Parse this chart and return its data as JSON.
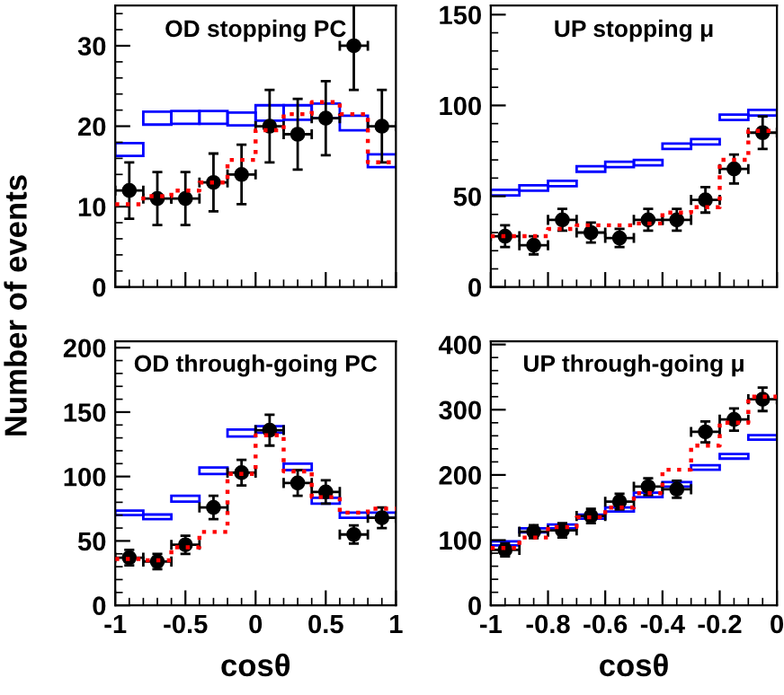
{
  "chart_data": [
    {
      "type": "scatter",
      "title": "OD stopping PC",
      "ylabel": "Number of events",
      "xlim": [
        -1,
        1
      ],
      "ylim": [
        0,
        35
      ],
      "xticks": [
        -1,
        -0.5,
        0,
        0.5,
        1
      ],
      "yticks": [
        0,
        10,
        20,
        30
      ],
      "tick_labels": "y",
      "grid": false,
      "legend": false,
      "series": [
        {
          "type": "bar",
          "color": "#0000ff",
          "x": [
            -0.9,
            -0.7,
            -0.5,
            -0.3,
            -0.1,
            0.1,
            0.3,
            0.5,
            0.7,
            0.9
          ],
          "base": [
            16.3,
            20.2,
            20.3,
            20.3,
            20.1,
            20.7,
            20.8,
            21,
            19.5,
            14.9
          ],
          "values": [
            1.6,
            1.6,
            1.6,
            1.6,
            1.6,
            1.9,
            1.8,
            1.8,
            1.8,
            1.6
          ]
        },
        {
          "type": "step",
          "color": "#ff0000",
          "line_style": "dotted",
          "x": [
            -1,
            -0.8,
            -0.6,
            -0.4,
            -0.2,
            0,
            0.2,
            0.4,
            0.6,
            0.8,
            1
          ],
          "values": [
            10.3,
            11.3,
            12,
            13,
            15.8,
            19.5,
            21.5,
            23,
            21.5,
            15.5,
            15.5
          ]
        },
        {
          "marker": "circle",
          "color": "#000000",
          "x": [
            -0.9,
            -0.7,
            -0.5,
            -0.3,
            -0.1,
            0.1,
            0.3,
            0.5,
            0.7,
            0.9
          ],
          "values": [
            12,
            11,
            11,
            13,
            14,
            20,
            19,
            21,
            30,
            20
          ],
          "errors": [
            3.5,
            3.3,
            3.3,
            3.6,
            3.7,
            4.5,
            4.4,
            4.6,
            5.5,
            4.5
          ],
          "xerrors": [
            0.1,
            0.1,
            0.1,
            0.1,
            0.1,
            0.1,
            0.1,
            0.1,
            0.1,
            0.1
          ]
        }
      ]
    },
    {
      "type": "scatter",
      "title": "UP stopping μ",
      "xlim": [
        -1,
        0
      ],
      "ylim": [
        0,
        155
      ],
      "xticks": [
        -1,
        -0.8,
        -0.6,
        -0.4,
        -0.2,
        0
      ],
      "yticks": [
        0,
        50,
        100,
        150
      ],
      "tick_labels": "y",
      "grid": false,
      "legend": false,
      "series": [
        {
          "type": "bar",
          "color": "#0000ff",
          "x": [
            -0.95,
            -0.85,
            -0.75,
            -0.65,
            -0.55,
            -0.45,
            -0.35,
            -0.25,
            -0.15,
            -0.05
          ],
          "base": [
            50.5,
            53,
            55.5,
            63.5,
            66,
            67,
            76,
            78.5,
            92,
            94.5
          ],
          "values": [
            3,
            3,
            3,
            3,
            3,
            3,
            3,
            3,
            3,
            3
          ]
        },
        {
          "type": "step",
          "color": "#ff0000",
          "line_style": "dotted",
          "x": [
            -1,
            -0.9,
            -0.8,
            -0.7,
            -0.6,
            -0.5,
            -0.4,
            -0.3,
            -0.2,
            -0.1,
            0
          ],
          "values": [
            28,
            28,
            32,
            34,
            34,
            35,
            41,
            44,
            70,
            86,
            86
          ]
        },
        {
          "marker": "circle",
          "color": "#000000",
          "x": [
            -0.95,
            -0.85,
            -0.75,
            -0.65,
            -0.55,
            -0.45,
            -0.35,
            -0.25,
            -0.15,
            -0.05
          ],
          "values": [
            28,
            23,
            37,
            30,
            27,
            37,
            37,
            48,
            65,
            85
          ],
          "errors": [
            6,
            5,
            6,
            5.5,
            5,
            6,
            6,
            7,
            8,
            9
          ],
          "xerrors": [
            0.05,
            0.05,
            0.05,
            0.05,
            0.05,
            0.05,
            0.05,
            0.05,
            0.05,
            0.05
          ]
        }
      ]
    },
    {
      "type": "scatter",
      "title": "OD through-going PC",
      "xlabel": "cosθ",
      "xlim": [
        -1,
        1
      ],
      "ylim": [
        0,
        205
      ],
      "xticks": [
        -1,
        -0.5,
        0,
        0.5,
        1
      ],
      "yticks": [
        0,
        50,
        100,
        150,
        200
      ],
      "grid": false,
      "legend": false,
      "series": [
        {
          "type": "bar",
          "color": "#0000ff",
          "x": [
            -0.9,
            -0.7,
            -0.5,
            -0.3,
            -0.1,
            0.1,
            0.3,
            0.5,
            0.7,
            0.9
          ],
          "base": [
            70,
            67,
            80.5,
            102,
            131,
            134,
            105,
            79,
            68,
            68
          ],
          "values": [
            3.5,
            3.5,
            4.5,
            5,
            5.5,
            5,
            5,
            4.5,
            4,
            4
          ]
        },
        {
          "type": "step",
          "color": "#ff0000",
          "line_style": "dotted",
          "x": [
            -1,
            -0.8,
            -0.6,
            -0.4,
            -0.2,
            0,
            0.2,
            0.4,
            0.6,
            0.8,
            1
          ],
          "values": [
            36,
            35,
            45,
            57,
            102,
            132,
            104,
            84,
            72,
            75,
            75
          ]
        },
        {
          "marker": "circle",
          "color": "#000000",
          "x": [
            -0.9,
            -0.7,
            -0.5,
            -0.3,
            -0.1,
            0.1,
            0.3,
            0.5,
            0.7,
            0.9
          ],
          "values": [
            37,
            34,
            47,
            76,
            103,
            136,
            95,
            88,
            55,
            68
          ],
          "errors": [
            6,
            6,
            7,
            9,
            10,
            12,
            10,
            9,
            7,
            8
          ],
          "xerrors": [
            0.1,
            0.1,
            0.1,
            0.1,
            0.1,
            0.1,
            0.1,
            0.1,
            0.1,
            0.1
          ]
        }
      ]
    },
    {
      "type": "scatter",
      "title": "UP through-going μ",
      "xlabel": "cosθ",
      "xlim": [
        -1,
        0
      ],
      "ylim": [
        0,
        405
      ],
      "xticks": [
        -1,
        -0.8,
        -0.6,
        -0.4,
        -0.2,
        0
      ],
      "yticks": [
        0,
        100,
        200,
        300,
        400
      ],
      "grid": false,
      "legend": false,
      "series": [
        {
          "type": "bar",
          "color": "#0000ff",
          "x": [
            -0.95,
            -0.85,
            -0.75,
            -0.65,
            -0.55,
            -0.45,
            -0.35,
            -0.25,
            -0.15,
            -0.05
          ],
          "base": [
            92,
            112,
            118,
            133,
            144,
            166,
            182,
            208,
            225,
            254
          ],
          "values": [
            6,
            6,
            6,
            6,
            6,
            7,
            7,
            7,
            7,
            7
          ]
        },
        {
          "type": "step",
          "color": "#ff0000",
          "line_style": "dotted",
          "x": [
            -1,
            -0.9,
            -0.8,
            -0.7,
            -0.6,
            -0.5,
            -0.4,
            -0.3,
            -0.2,
            -0.1,
            0
          ],
          "values": [
            88,
            104,
            120,
            135,
            150,
            172,
            208,
            245,
            280,
            320,
            320
          ]
        },
        {
          "marker": "circle",
          "color": "#000000",
          "x": [
            -0.95,
            -0.85,
            -0.75,
            -0.65,
            -0.55,
            -0.45,
            -0.35,
            -0.25,
            -0.15,
            -0.05
          ],
          "values": [
            85,
            113,
            115,
            137,
            159,
            182,
            178,
            266,
            285,
            316
          ],
          "errors": [
            10,
            10,
            11,
            11,
            12,
            13,
            13,
            16,
            17,
            18
          ],
          "xerrors": [
            0.05,
            0.05,
            0.05,
            0.05,
            0.05,
            0.05,
            0.05,
            0.05,
            0.05,
            0.05
          ]
        }
      ]
    }
  ]
}
